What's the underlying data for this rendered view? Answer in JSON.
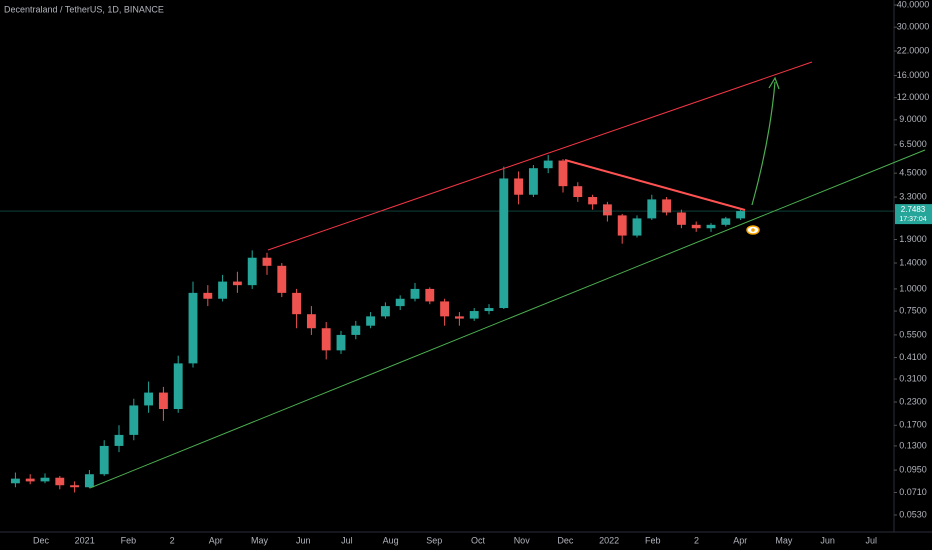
{
  "header": {
    "symbol": "Decentraland / TetherUS, 1D, BINANCE"
  },
  "chart_data": {
    "type": "candlestick",
    "log_scale": true,
    "up_color": "#26a69a",
    "down_color": "#ef5350",
    "ylim": [
      0.0436,
      42.7
    ],
    "yticks": [
      {
        "value": 40,
        "label": "40.0000"
      },
      {
        "value": 30,
        "label": "30.0000"
      },
      {
        "value": 22,
        "label": "22.0000"
      },
      {
        "value": 16,
        "label": "16.0000"
      },
      {
        "value": 12,
        "label": "12.0000"
      },
      {
        "value": 9,
        "label": "9.0000"
      },
      {
        "value": 6.5,
        "label": "6.5000"
      },
      {
        "value": 4.5,
        "label": "4.5000"
      },
      {
        "value": 3.3,
        "label": "3.3000"
      },
      {
        "value": 1.9,
        "label": "1.9000"
      },
      {
        "value": 1.4,
        "label": "1.4000"
      },
      {
        "value": 1.0,
        "label": "1.0000"
      },
      {
        "value": 0.75,
        "label": "0.7500"
      },
      {
        "value": 0.55,
        "label": "0.5500"
      },
      {
        "value": 0.41,
        "label": "0.4100"
      },
      {
        "value": 0.31,
        "label": "0.3100"
      },
      {
        "value": 0.23,
        "label": "0.2300"
      },
      {
        "value": 0.17,
        "label": "0.1700"
      },
      {
        "value": 0.13,
        "label": "0.1300"
      },
      {
        "value": 0.095,
        "label": "0.0950"
      },
      {
        "value": 0.071,
        "label": "0.0710"
      },
      {
        "value": 0.053,
        "label": "0.0530"
      }
    ],
    "xticks": [
      "Dec",
      "2021",
      "Feb",
      "2",
      "Apr",
      "May",
      "Jun",
      "Jul",
      "Aug",
      "Sep",
      "Oct",
      "Nov",
      "Dec",
      "2022",
      "Feb",
      "2",
      "Apr",
      "May",
      "Jun",
      "Jul"
    ],
    "last_price": 2.7483,
    "countdown": "17:37:04",
    "candles": [
      [
        0.08,
        0.092,
        0.076,
        0.085
      ],
      [
        0.085,
        0.09,
        0.079,
        0.082
      ],
      [
        0.082,
        0.091,
        0.08,
        0.086
      ],
      [
        0.086,
        0.088,
        0.074,
        0.078
      ],
      [
        0.078,
        0.082,
        0.071,
        0.076
      ],
      [
        0.076,
        0.095,
        0.075,
        0.09
      ],
      [
        0.09,
        0.14,
        0.088,
        0.13
      ],
      [
        0.13,
        0.17,
        0.12,
        0.15
      ],
      [
        0.15,
        0.24,
        0.14,
        0.22
      ],
      [
        0.22,
        0.3,
        0.2,
        0.26
      ],
      [
        0.26,
        0.28,
        0.18,
        0.21
      ],
      [
        0.21,
        0.42,
        0.2,
        0.38
      ],
      [
        0.38,
        1.1,
        0.36,
        0.95
      ],
      [
        0.95,
        1.05,
        0.8,
        0.88
      ],
      [
        0.88,
        1.2,
        0.85,
        1.1
      ],
      [
        1.1,
        1.25,
        0.95,
        1.05
      ],
      [
        1.05,
        1.65,
        1.0,
        1.5
      ],
      [
        1.5,
        1.6,
        1.2,
        1.35
      ],
      [
        1.35,
        1.4,
        0.9,
        0.95
      ],
      [
        0.95,
        1.0,
        0.6,
        0.72
      ],
      [
        0.72,
        0.8,
        0.55,
        0.6
      ],
      [
        0.6,
        0.65,
        0.4,
        0.45
      ],
      [
        0.45,
        0.58,
        0.43,
        0.55
      ],
      [
        0.55,
        0.66,
        0.52,
        0.62
      ],
      [
        0.62,
        0.74,
        0.6,
        0.7
      ],
      [
        0.7,
        0.84,
        0.68,
        0.8
      ],
      [
        0.8,
        0.92,
        0.76,
        0.88
      ],
      [
        0.88,
        1.08,
        0.85,
        1.0
      ],
      [
        1.0,
        1.02,
        0.82,
        0.85
      ],
      [
        0.85,
        0.88,
        0.62,
        0.7
      ],
      [
        0.7,
        0.74,
        0.62,
        0.68
      ],
      [
        0.68,
        0.78,
        0.66,
        0.75
      ],
      [
        0.75,
        0.82,
        0.72,
        0.78
      ],
      [
        0.78,
        4.9,
        0.77,
        4.2
      ],
      [
        4.2,
        4.6,
        3.0,
        3.4
      ],
      [
        3.4,
        5.0,
        3.3,
        4.8
      ],
      [
        4.8,
        5.7,
        4.5,
        5.3
      ],
      [
        5.3,
        5.4,
        3.5,
        3.8
      ],
      [
        3.8,
        4.0,
        3.1,
        3.3
      ],
      [
        3.3,
        3.4,
        2.8,
        3.0
      ],
      [
        3.0,
        3.1,
        2.4,
        2.6
      ],
      [
        2.6,
        2.65,
        1.8,
        2.0
      ],
      [
        2.0,
        2.6,
        1.95,
        2.5
      ],
      [
        2.5,
        3.4,
        2.45,
        3.2
      ],
      [
        3.2,
        3.3,
        2.6,
        2.7
      ],
      [
        2.7,
        2.8,
        2.2,
        2.3
      ],
      [
        2.3,
        2.4,
        2.1,
        2.2
      ],
      [
        2.2,
        2.35,
        2.1,
        2.3
      ],
      [
        2.3,
        2.55,
        2.25,
        2.5
      ],
      [
        2.5,
        2.8,
        2.45,
        2.75
      ]
    ]
  }
}
